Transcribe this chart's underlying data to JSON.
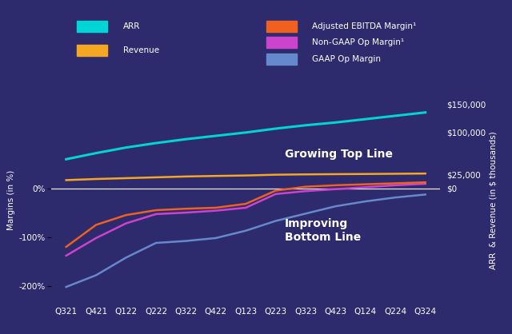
{
  "background_color": "#2e2a6e",
  "text_color": "#ffffff",
  "quarters": [
    "Q321",
    "Q421",
    "Q122",
    "Q222",
    "Q322",
    "Q422",
    "Q123",
    "Q223",
    "Q323",
    "Q423",
    "Q124",
    "Q224",
    "Q324"
  ],
  "ARR": [
    52000,
    63000,
    73000,
    81000,
    88000,
    94000,
    100000,
    107000,
    113000,
    118000,
    124000,
    130000,
    136000
  ],
  "Revenue": [
    14500,
    16500,
    18000,
    19500,
    21000,
    22000,
    22800,
    24200,
    24800,
    25200,
    25500,
    25900,
    26300
  ],
  "Adj_EBITDA_Margin": [
    -120,
    -75,
    -55,
    -45,
    -42,
    -40,
    -32,
    -5,
    3,
    6,
    8,
    10,
    12
  ],
  "NonGAAP_Op_Margin": [
    -138,
    -102,
    -72,
    -53,
    -50,
    -46,
    -40,
    -12,
    -6,
    -2,
    2,
    6,
    9
  ],
  "GAAP_Op_Margin": [
    -202,
    -178,
    -142,
    -112,
    -108,
    -102,
    -87,
    -67,
    -52,
    -37,
    -27,
    -19,
    -13
  ],
  "arr_color": "#00d4d4",
  "revenue_color": "#f5a623",
  "adj_ebitda_color": "#f06020",
  "nongaap_color": "#cc44cc",
  "gaap_op_color": "#6688cc",
  "legend_labels": [
    "ARR",
    "Revenue",
    "Adjusted EBITDA Margin¹",
    "Non-GAAP Op Margin¹",
    "GAAP Op Margin"
  ],
  "right_yticks": [
    0,
    25000,
    100000,
    150000
  ],
  "right_yticklabels": [
    "$0",
    "$25,000",
    "$100,000",
    "$150,000"
  ],
  "left_yticks": [
    -200,
    -100,
    0
  ],
  "left_yticklabels": [
    "-200%",
    "-100%",
    "0%"
  ],
  "ylabel_left": "Margins (in %)",
  "ylabel_right": "ARR  & Revenue (in $ thousands)",
  "annotation1": "Growing Top Line",
  "annotation2": "Improving\nBottom Line",
  "axis_fontsize": 7.5,
  "legend_fontsize": 7.5,
  "annotation_fontsize": 10
}
